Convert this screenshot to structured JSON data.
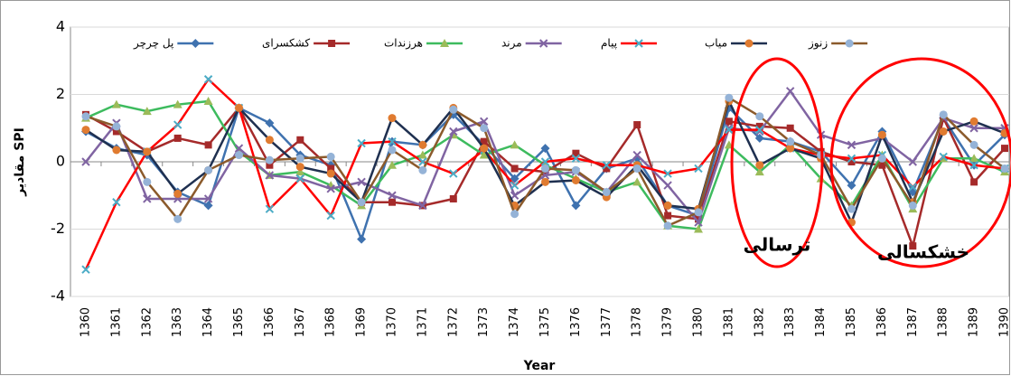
{
  "chart_data": {
    "type": "line",
    "y_label": "مقادیر SPI",
    "x_label": "Year",
    "categories": [
      "1360",
      "1361",
      "1362",
      "1363",
      "1364",
      "1365",
      "1366",
      "1367",
      "1368",
      "1369",
      "1370",
      "1371",
      "1372",
      "1373",
      "1374",
      "1375",
      "1376",
      "1377",
      "1378",
      "1379",
      "1380",
      "1381",
      "1382",
      "1383",
      "1384",
      "1385",
      "1386",
      "1387",
      "1388",
      "1389",
      "1390"
    ],
    "ylim": [
      -4,
      4
    ],
    "yticks": [
      -4,
      -2,
      0,
      2,
      4
    ],
    "grid": true,
    "series": [
      {
        "name": "پل چرچر",
        "color": "#3f72af",
        "marker": "diamond",
        "marker_color": "#3f72af",
        "values": [
          0.9,
          0.4,
          0.2,
          -0.9,
          -1.3,
          1.6,
          1.15,
          0.2,
          -0.1,
          -2.3,
          0.6,
          0.5,
          1.4,
          0.5,
          -0.5,
          0.4,
          -1.3,
          -0.2,
          0.1,
          -1.3,
          -1.6,
          1.6,
          0.7,
          0.6,
          0.3,
          -0.7,
          0.9,
          -0.9,
          1.3,
          -0.1,
          0.8
        ]
      },
      {
        "name": "کشکسرای",
        "color": "#a52a2a",
        "marker": "square",
        "marker_color": "#a52a2a",
        "values": [
          1.4,
          0.9,
          0.3,
          0.7,
          0.5,
          1.6,
          -0.1,
          0.65,
          -0.2,
          -1.2,
          -1.2,
          -1.3,
          -1.1,
          0.6,
          -0.2,
          -0.3,
          0.25,
          -0.2,
          1.1,
          -1.6,
          -1.7,
          1.2,
          1.05,
          1.0,
          0.3,
          0.0,
          -0.1,
          -2.5,
          1.3,
          -0.6,
          0.4
        ]
      },
      {
        "name": "هرزندات",
        "color": "#3dbb5e",
        "marker": "triangle",
        "marker_color": "#9bbb59",
        "values": [
          1.3,
          1.7,
          1.5,
          1.7,
          1.8,
          0.3,
          -0.4,
          -0.3,
          -0.7,
          -1.3,
          -0.1,
          0.2,
          0.8,
          0.2,
          0.5,
          -0.1,
          -0.5,
          -0.9,
          -0.6,
          -1.9,
          -2.0,
          0.5,
          -0.3,
          0.5,
          -0.5,
          -1.3,
          0.2,
          -1.4,
          0.1,
          0.1,
          -0.3
        ]
      },
      {
        "name": "مرند",
        "color": "#8064a2",
        "marker": "x",
        "marker_color": "#8064a2",
        "values": [
          0.0,
          1.15,
          -1.1,
          -1.1,
          -1.1,
          0.4,
          -0.4,
          -0.5,
          -0.8,
          -0.6,
          -1.0,
          -1.3,
          0.9,
          1.2,
          -1.0,
          -0.4,
          -0.3,
          -0.9,
          0.2,
          -0.7,
          -1.8,
          1.0,
          0.9,
          2.1,
          0.8,
          0.5,
          0.7,
          0.0,
          1.3,
          1.0,
          1.0
        ]
      },
      {
        "name": "پیام",
        "color": "#ff0000",
        "marker": "x",
        "marker_color": "#4bacc6",
        "values": [
          -3.2,
          -1.2,
          0.3,
          1.1,
          2.45,
          1.6,
          -1.4,
          -0.5,
          -1.6,
          0.55,
          0.6,
          0.0,
          -0.35,
          0.35,
          -0.7,
          0.0,
          0.1,
          -0.1,
          -0.1,
          -0.35,
          -0.2,
          0.95,
          0.95,
          0.4,
          0.2,
          0.1,
          0.2,
          -0.75,
          0.15,
          -0.1,
          -0.2
        ]
      },
      {
        "name": "میاب",
        "color": "#1f3050",
        "marker": "circle",
        "marker_color": "#e07b30",
        "values": [
          0.95,
          0.35,
          0.3,
          -0.95,
          -0.25,
          1.6,
          0.65,
          -0.15,
          -0.35,
          -1.2,
          1.3,
          0.5,
          1.6,
          0.4,
          -1.3,
          -0.6,
          -0.55,
          -1.05,
          -0.1,
          -1.3,
          -1.4,
          1.8,
          -0.1,
          0.4,
          0.1,
          -1.8,
          0.8,
          -1.2,
          0.9,
          1.2,
          0.85
        ]
      },
      {
        "name": "زنوز",
        "color": "#8b5a2b",
        "marker": "circle",
        "marker_color": "#95b3d7",
        "values": [
          1.35,
          1.05,
          -0.6,
          -1.7,
          -0.25,
          0.2,
          0.05,
          0.1,
          0.15,
          -1.2,
          0.35,
          -0.25,
          1.55,
          1.0,
          -1.55,
          -0.2,
          -0.25,
          -0.9,
          -0.2,
          -1.9,
          -1.5,
          1.9,
          1.35,
          0.6,
          0.2,
          -1.4,
          0.1,
          -1.3,
          1.4,
          0.5,
          -0.2
        ]
      }
    ],
    "annotations": [
      {
        "text": "ترسالی",
        "color": "#ff0000"
      },
      {
        "text": "خشکسالی",
        "color": "#ff0000"
      }
    ]
  }
}
